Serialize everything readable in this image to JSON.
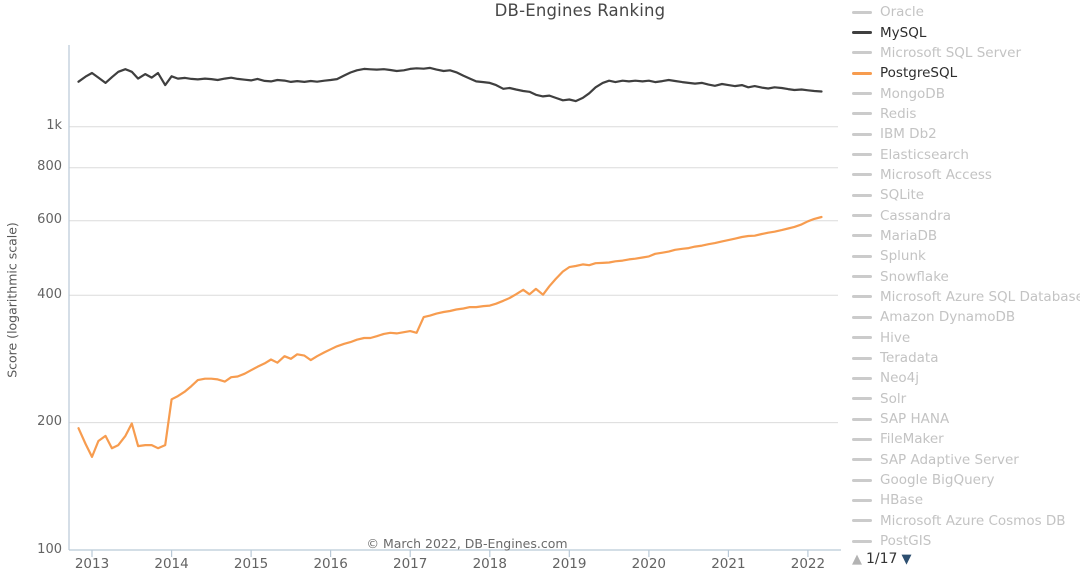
{
  "chart": {
    "title": "DB-Engines Ranking",
    "y_axis_title": "Score (logarithmic scale)",
    "copyright": "© March 2022, DB-Engines.com",
    "y_ticks": [
      {
        "label": "1k",
        "value": 1000
      },
      {
        "label": "800",
        "value": 800
      },
      {
        "label": "600",
        "value": 600
      },
      {
        "label": "400",
        "value": 400
      },
      {
        "label": "200",
        "value": 200
      },
      {
        "label": "100",
        "value": 100
      }
    ],
    "x_ticks": [
      "2013",
      "2014",
      "2015",
      "2016",
      "2017",
      "2018",
      "2019",
      "2020",
      "2021",
      "2022"
    ]
  },
  "chart_data": {
    "type": "line",
    "title": "DB-Engines Ranking",
    "xlabel": "",
    "ylabel": "Score (logarithmic scale)",
    "y_scale": "log",
    "ylim": [
      100,
      1560
    ],
    "xlim": [
      2012.78,
      2022.35
    ],
    "grid": "horizontal",
    "legend_position": "right",
    "series": [
      {
        "name": "MySQL",
        "color": "#3f3f3f",
        "points": [
          [
            2012.83,
            1278
          ],
          [
            2012.92,
            1314
          ],
          [
            2013.0,
            1340
          ],
          [
            2013.08,
            1307
          ],
          [
            2013.17,
            1270
          ],
          [
            2013.25,
            1310
          ],
          [
            2013.33,
            1349
          ],
          [
            2013.42,
            1368
          ],
          [
            2013.5,
            1349
          ],
          [
            2013.58,
            1300
          ],
          [
            2013.67,
            1332
          ],
          [
            2013.75,
            1307
          ],
          [
            2013.83,
            1340
          ],
          [
            2013.92,
            1255
          ],
          [
            2014.0,
            1316
          ],
          [
            2014.08,
            1300
          ],
          [
            2014.17,
            1305
          ],
          [
            2014.25,
            1298
          ],
          [
            2014.33,
            1294
          ],
          [
            2014.42,
            1300
          ],
          [
            2014.5,
            1296
          ],
          [
            2014.58,
            1290
          ],
          [
            2014.67,
            1300
          ],
          [
            2014.75,
            1306
          ],
          [
            2014.83,
            1298
          ],
          [
            2014.92,
            1292
          ],
          [
            2015.0,
            1287
          ],
          [
            2015.08,
            1298
          ],
          [
            2015.17,
            1284
          ],
          [
            2015.25,
            1280
          ],
          [
            2015.33,
            1290
          ],
          [
            2015.42,
            1286
          ],
          [
            2015.5,
            1277
          ],
          [
            2015.58,
            1282
          ],
          [
            2015.67,
            1277
          ],
          [
            2015.75,
            1283
          ],
          [
            2015.83,
            1278
          ],
          [
            2015.92,
            1285
          ],
          [
            2016.0,
            1290
          ],
          [
            2016.08,
            1296
          ],
          [
            2016.17,
            1322
          ],
          [
            2016.25,
            1344
          ],
          [
            2016.33,
            1360
          ],
          [
            2016.42,
            1370
          ],
          [
            2016.5,
            1367
          ],
          [
            2016.58,
            1365
          ],
          [
            2016.67,
            1368
          ],
          [
            2016.75,
            1362
          ],
          [
            2016.83,
            1355
          ],
          [
            2016.92,
            1360
          ],
          [
            2017.0,
            1370
          ],
          [
            2017.08,
            1375
          ],
          [
            2017.17,
            1372
          ],
          [
            2017.25,
            1378
          ],
          [
            2017.33,
            1365
          ],
          [
            2017.42,
            1355
          ],
          [
            2017.5,
            1360
          ],
          [
            2017.58,
            1345
          ],
          [
            2017.67,
            1320
          ],
          [
            2017.75,
            1300
          ],
          [
            2017.83,
            1280
          ],
          [
            2017.92,
            1275
          ],
          [
            2018.0,
            1270
          ],
          [
            2018.08,
            1255
          ],
          [
            2018.17,
            1230
          ],
          [
            2018.25,
            1235
          ],
          [
            2018.33,
            1225
          ],
          [
            2018.42,
            1215
          ],
          [
            2018.5,
            1210
          ],
          [
            2018.58,
            1190
          ],
          [
            2018.67,
            1180
          ],
          [
            2018.75,
            1185
          ],
          [
            2018.83,
            1170
          ],
          [
            2018.92,
            1155
          ],
          [
            2019.0,
            1160
          ],
          [
            2019.08,
            1150
          ],
          [
            2019.17,
            1170
          ],
          [
            2019.25,
            1200
          ],
          [
            2019.33,
            1240
          ],
          [
            2019.42,
            1270
          ],
          [
            2019.5,
            1285
          ],
          [
            2019.58,
            1275
          ],
          [
            2019.67,
            1285
          ],
          [
            2019.75,
            1280
          ],
          [
            2019.83,
            1285
          ],
          [
            2019.92,
            1280
          ],
          [
            2020.0,
            1285
          ],
          [
            2020.08,
            1275
          ],
          [
            2020.17,
            1282
          ],
          [
            2020.25,
            1290
          ],
          [
            2020.33,
            1283
          ],
          [
            2020.42,
            1275
          ],
          [
            2020.5,
            1270
          ],
          [
            2020.58,
            1265
          ],
          [
            2020.67,
            1270
          ],
          [
            2020.75,
            1258
          ],
          [
            2020.83,
            1250
          ],
          [
            2020.92,
            1262
          ],
          [
            2021.0,
            1255
          ],
          [
            2021.08,
            1248
          ],
          [
            2021.17,
            1255
          ],
          [
            2021.25,
            1240
          ],
          [
            2021.33,
            1248
          ],
          [
            2021.42,
            1238
          ],
          [
            2021.5,
            1232
          ],
          [
            2021.58,
            1240
          ],
          [
            2021.67,
            1235
          ],
          [
            2021.75,
            1228
          ],
          [
            2021.83,
            1222
          ],
          [
            2021.92,
            1225
          ],
          [
            2022.0,
            1220
          ],
          [
            2022.08,
            1215
          ],
          [
            2022.17,
            1212
          ]
        ]
      },
      {
        "name": "PostgreSQL",
        "color": "#f79c4f",
        "points": [
          [
            2012.83,
            194
          ],
          [
            2012.92,
            178
          ],
          [
            2013.0,
            166
          ],
          [
            2013.08,
            181
          ],
          [
            2013.17,
            186
          ],
          [
            2013.25,
            174
          ],
          [
            2013.33,
            177
          ],
          [
            2013.42,
            186
          ],
          [
            2013.5,
            199
          ],
          [
            2013.58,
            176
          ],
          [
            2013.67,
            177
          ],
          [
            2013.75,
            177
          ],
          [
            2013.83,
            174
          ],
          [
            2013.92,
            177
          ],
          [
            2014.0,
            227
          ],
          [
            2014.08,
            231
          ],
          [
            2014.17,
            237
          ],
          [
            2014.25,
            244
          ],
          [
            2014.33,
            252
          ],
          [
            2014.42,
            254
          ],
          [
            2014.5,
            254
          ],
          [
            2014.58,
            253
          ],
          [
            2014.67,
            250
          ],
          [
            2014.75,
            256
          ],
          [
            2014.83,
            257
          ],
          [
            2014.92,
            261
          ],
          [
            2015.0,
            266
          ],
          [
            2015.08,
            271
          ],
          [
            2015.17,
            276
          ],
          [
            2015.25,
            282
          ],
          [
            2015.33,
            277
          ],
          [
            2015.42,
            287
          ],
          [
            2015.5,
            283
          ],
          [
            2015.58,
            290
          ],
          [
            2015.67,
            288
          ],
          [
            2015.75,
            281
          ],
          [
            2015.83,
            287
          ],
          [
            2015.92,
            293
          ],
          [
            2016.0,
            298
          ],
          [
            2016.08,
            303
          ],
          [
            2016.17,
            307
          ],
          [
            2016.25,
            310
          ],
          [
            2016.33,
            314
          ],
          [
            2016.42,
            317
          ],
          [
            2016.5,
            317
          ],
          [
            2016.58,
            320
          ],
          [
            2016.67,
            324
          ],
          [
            2016.75,
            326
          ],
          [
            2016.83,
            325
          ],
          [
            2016.92,
            327
          ],
          [
            2017.0,
            329
          ],
          [
            2017.08,
            326
          ],
          [
            2017.17,
            355
          ],
          [
            2017.25,
            358
          ],
          [
            2017.33,
            362
          ],
          [
            2017.42,
            365
          ],
          [
            2017.5,
            367
          ],
          [
            2017.58,
            370
          ],
          [
            2017.67,
            372
          ],
          [
            2017.75,
            375
          ],
          [
            2017.83,
            375
          ],
          [
            2017.92,
            377
          ],
          [
            2018.0,
            378
          ],
          [
            2018.08,
            382
          ],
          [
            2018.17,
            388
          ],
          [
            2018.25,
            394
          ],
          [
            2018.33,
            402
          ],
          [
            2018.42,
            412
          ],
          [
            2018.5,
            402
          ],
          [
            2018.58,
            414
          ],
          [
            2018.67,
            401
          ],
          [
            2018.75,
            420
          ],
          [
            2018.83,
            437
          ],
          [
            2018.92,
            455
          ],
          [
            2019.0,
            466
          ],
          [
            2019.08,
            469
          ],
          [
            2019.17,
            473
          ],
          [
            2019.25,
            471
          ],
          [
            2019.33,
            476
          ],
          [
            2019.42,
            477
          ],
          [
            2019.5,
            478
          ],
          [
            2019.58,
            481
          ],
          [
            2019.67,
            483
          ],
          [
            2019.75,
            486
          ],
          [
            2019.83,
            488
          ],
          [
            2019.92,
            491
          ],
          [
            2020.0,
            494
          ],
          [
            2020.08,
            501
          ],
          [
            2020.17,
            504
          ],
          [
            2020.25,
            507
          ],
          [
            2020.33,
            512
          ],
          [
            2020.42,
            515
          ],
          [
            2020.5,
            517
          ],
          [
            2020.58,
            521
          ],
          [
            2020.67,
            524
          ],
          [
            2020.75,
            528
          ],
          [
            2020.83,
            531
          ],
          [
            2020.92,
            536
          ],
          [
            2021.0,
            540
          ],
          [
            2021.08,
            544
          ],
          [
            2021.17,
            549
          ],
          [
            2021.25,
            552
          ],
          [
            2021.33,
            553
          ],
          [
            2021.42,
            558
          ],
          [
            2021.5,
            562
          ],
          [
            2021.58,
            565
          ],
          [
            2021.67,
            570
          ],
          [
            2021.75,
            575
          ],
          [
            2021.83,
            580
          ],
          [
            2021.92,
            588
          ],
          [
            2022.0,
            598
          ],
          [
            2022.08,
            606
          ],
          [
            2022.17,
            612
          ]
        ]
      }
    ]
  },
  "legend": {
    "items": [
      {
        "label": "Oracle",
        "state": "inactive"
      },
      {
        "label": "MySQL",
        "state": "active",
        "color": "#3f3f3f"
      },
      {
        "label": "Microsoft SQL Server",
        "state": "inactive"
      },
      {
        "label": "PostgreSQL",
        "state": "active",
        "color": "#f79c4f"
      },
      {
        "label": "MongoDB",
        "state": "inactive"
      },
      {
        "label": "Redis",
        "state": "inactive"
      },
      {
        "label": "IBM Db2",
        "state": "inactive"
      },
      {
        "label": "Elasticsearch",
        "state": "inactive"
      },
      {
        "label": "Microsoft Access",
        "state": "inactive"
      },
      {
        "label": "SQLite",
        "state": "inactive"
      },
      {
        "label": "Cassandra",
        "state": "inactive"
      },
      {
        "label": "MariaDB",
        "state": "inactive"
      },
      {
        "label": "Splunk",
        "state": "inactive"
      },
      {
        "label": "Snowflake",
        "state": "inactive"
      },
      {
        "label": "Microsoft Azure SQL Database",
        "state": "inactive"
      },
      {
        "label": "Amazon DynamoDB",
        "state": "inactive"
      },
      {
        "label": "Hive",
        "state": "inactive"
      },
      {
        "label": "Teradata",
        "state": "inactive"
      },
      {
        "label": "Neo4j",
        "state": "inactive"
      },
      {
        "label": "Solr",
        "state": "inactive"
      },
      {
        "label": "SAP HANA",
        "state": "inactive"
      },
      {
        "label": "FileMaker",
        "state": "inactive"
      },
      {
        "label": "SAP Adaptive Server",
        "state": "inactive"
      },
      {
        "label": "Google BigQuery",
        "state": "inactive"
      },
      {
        "label": "HBase",
        "state": "inactive"
      },
      {
        "label": "Microsoft Azure Cosmos DB",
        "state": "inactive"
      },
      {
        "label": "PostGIS",
        "state": "inactive"
      }
    ]
  },
  "pagination": {
    "up_icon": "▲",
    "label": "1/17",
    "down_icon": "▼"
  },
  "colors": {
    "grid": "#dcdcdc",
    "axis": "#b9c9d7",
    "inactive_swatch": "#cbcbcb",
    "pager_up": "#b3b3b3",
    "pager_down": "#2d4f70"
  }
}
